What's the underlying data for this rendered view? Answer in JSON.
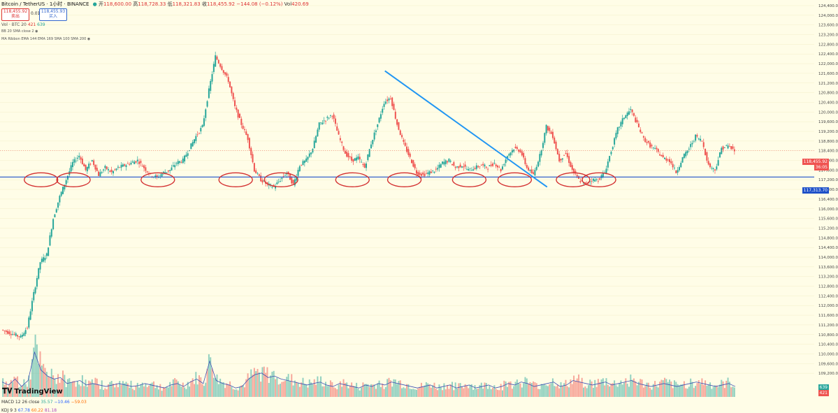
{
  "header": {
    "title": "Bitcoin / TetherUS · 1小时 · BINANCE",
    "open_label": "开",
    "open": "118,600.00",
    "high_label": "高",
    "high": "118,728.33",
    "low_label": "低",
    "low": "118,321.83",
    "close_label": "收",
    "close": "118,455.92",
    "change": "−144.08 (−0.12%)",
    "vol_label": "Vol",
    "vol": "420.69",
    "sell_price": "118,455.92",
    "sell_label": "卖出",
    "spread": "0.01",
    "buy_price": "118,455.93",
    "buy_label": "买入"
  },
  "indicators": {
    "vol": "Vol · BTC 20",
    "vol_v1": "421",
    "vol_v2": "639",
    "bb": "BB 20 SMA close 2",
    "ribbon": "MA Ribbon EMA 144 EMA 169 SMA 100 SMA 200",
    "macd": "MACD 12 26 close",
    "macd_v1": "35.57",
    "macd_v2": "−10.46",
    "macd_v3": "−59.03",
    "kdj": "KDJ 9 3",
    "kdj_v1": "67.78",
    "kdj_v2": "60.22",
    "kdj_v3": "81.18"
  },
  "brand": "TradingView",
  "axis_tags": {
    "last_price": "118,455.92",
    "countdown": "36:05",
    "support_line": "117,313.70",
    "vol_a": "639",
    "vol_b": "421"
  },
  "colors": {
    "up": "#26a69a",
    "down": "#ef5350",
    "background": "#fffde7",
    "support_line": "#1e50c8",
    "trend_line": "#2196f3",
    "circle": "#d32f2f"
  },
  "chart_data": {
    "type": "candlestick",
    "symbol": "BTCUSDT",
    "timeframe": "1h",
    "ylim": [
      108800,
      124400
    ],
    "y_ticks": [
      124400,
      124000,
      123600,
      123200,
      122800,
      122400,
      122000,
      121600,
      121200,
      120800,
      120400,
      120000,
      119600,
      119200,
      118800,
      118400,
      118000,
      117600,
      117200,
      116800,
      116400,
      116000,
      115600,
      115200,
      114800,
      114400,
      114000,
      113600,
      113200,
      112800,
      112400,
      112000,
      111600,
      111200,
      110800,
      110400,
      110000,
      109600,
      109200
    ],
    "y_tick_labels": [
      "124,400.00",
      "124,000.00",
      "123,600.00",
      "123,200.00",
      "122,800.00",
      "122,400.00",
      "122,000.00",
      "121,600.00",
      "121,200.00",
      "120,800.00",
      "120,400.00",
      "120,000.00",
      "119,600.00",
      "119,200.00",
      "118,800.00",
      "118,400.00",
      "118,000.00",
      "117,600.00",
      "117,200.00",
      "116,800.00",
      "116,400.00",
      "116,000.00",
      "115,600.00",
      "115,200.00",
      "114,800.00",
      "114,400.00",
      "114,000.00",
      "113,600.00",
      "113,200.00",
      "112,800.00",
      "112,400.00",
      "112,000.00",
      "111,600.00",
      "111,200.00",
      "110,800.00",
      "110,400.00",
      "110,000.00",
      "109,600.00",
      "109,200.00"
    ],
    "close_path": [
      111000,
      110900,
      110800,
      110700,
      111100,
      112500,
      113800,
      114100,
      115600,
      116500,
      117200,
      117900,
      118200,
      117600,
      118000,
      117400,
      117700,
      117500,
      117700,
      117800,
      117900,
      118000,
      117700,
      117400,
      117300,
      117500,
      117600,
      117900,
      118000,
      118500,
      119000,
      119400,
      120900,
      122300,
      121800,
      121300,
      120200,
      119500,
      118900,
      117600,
      117200,
      117000,
      116900,
      117200,
      117500,
      117000,
      117800,
      118000,
      118500,
      119500,
      119700,
      119900,
      119000,
      118300,
      118000,
      118100,
      117700,
      118700,
      119500,
      120400,
      120600,
      119500,
      118700,
      118100,
      117500,
      117400,
      117500,
      117600,
      117900,
      118000,
      117700,
      117800,
      117600,
      117700,
      117800,
      117700,
      117900,
      117600,
      118200,
      118500,
      118400,
      117700,
      117400,
      118200,
      119400,
      119000,
      118000,
      118300,
      117600,
      117200,
      117000,
      117200,
      117200,
      117500,
      118400,
      119300,
      119800,
      120100,
      119500,
      118900,
      118600,
      118400,
      118100,
      118000,
      117500,
      118100,
      118500,
      119000,
      118800,
      117800,
      117600,
      118500,
      118600,
      118400
    ],
    "volume_path": [
      50,
      40,
      60,
      35,
      55,
      150,
      90,
      70,
      60,
      65,
      45,
      50,
      55,
      40,
      45,
      40,
      35,
      40,
      45,
      40,
      35,
      38,
      45,
      40,
      35,
      30,
      40,
      45,
      35,
      50,
      60,
      45,
      120,
      55,
      45,
      40,
      30,
      35,
      60,
      75,
      80,
      65,
      70,
      60,
      55,
      50,
      45,
      40,
      45,
      50,
      40,
      35,
      45,
      40,
      35,
      30,
      40,
      35,
      45,
      40,
      50,
      45,
      40,
      35,
      30,
      35,
      40,
      30,
      35,
      40,
      30,
      35,
      40,
      30,
      35,
      40,
      30,
      35,
      45,
      40,
      50,
      45,
      35,
      40,
      45,
      50,
      35,
      40,
      55,
      50,
      45,
      40,
      45,
      50,
      40,
      45,
      50,
      55,
      45,
      40,
      35,
      40,
      45,
      40,
      35,
      40,
      45,
      50,
      45,
      40,
      35,
      40,
      45,
      35
    ],
    "support_level": 117313.7,
    "resistance_trendline": {
      "from": [
        118,
        121700
      ],
      "to": [
        168,
        116900
      ]
    },
    "support_touch_circles": [
      6,
      11,
      24,
      36,
      43,
      54,
      62,
      72,
      79,
      88,
      92
    ]
  }
}
